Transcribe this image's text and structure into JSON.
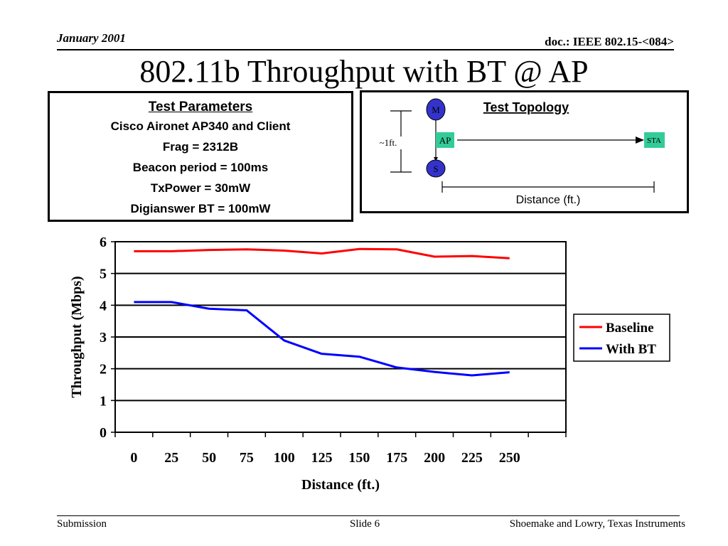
{
  "header": {
    "date": "January 2001",
    "doc": "doc.: IEEE 802.15-<084>"
  },
  "title": "802.11b Throughput with BT @ AP",
  "test_parameters": {
    "heading": "Test Parameters",
    "lines": [
      "Cisco Aironet AP340 and Client",
      "Frag = 2312B",
      "Beacon period = 100ms",
      "TxPower = 30mW",
      "Digianswer BT = 100mW"
    ]
  },
  "test_topology": {
    "heading": "Test Topology",
    "spacing_label": "~1ft.",
    "nodes": {
      "m": "M",
      "ap": "AP",
      "s": "S",
      "sta": "STA"
    },
    "distance_label": "Distance (ft.)",
    "colors": {
      "bt_node": "#3333cc",
      "wifi_node": "#33cc99"
    }
  },
  "chart_data": {
    "type": "line",
    "x": [
      0,
      25,
      50,
      75,
      100,
      125,
      150,
      175,
      200,
      225,
      250
    ],
    "series": [
      {
        "name": "Baseline",
        "color": "#ff0000",
        "values": [
          5.7,
          5.7,
          5.74,
          5.76,
          5.72,
          5.63,
          5.77,
          5.76,
          5.53,
          5.55,
          5.48
        ]
      },
      {
        "name": "With BT",
        "color": "#0000ff",
        "values": [
          4.1,
          4.1,
          3.89,
          3.84,
          2.89,
          2.47,
          2.38,
          2.04,
          1.9,
          1.79,
          1.89
        ]
      }
    ],
    "xlabel": "Distance (ft.)",
    "ylabel": "Throughput (Mbps)",
    "ylim": [
      0,
      6
    ],
    "yticks": [
      0,
      1,
      2,
      3,
      4,
      5,
      6
    ],
    "grid": true,
    "legend_position": "right"
  },
  "footer": {
    "left": "Submission",
    "center": "Slide 6",
    "right": "Shoemake and Lowry, Texas Instruments"
  }
}
